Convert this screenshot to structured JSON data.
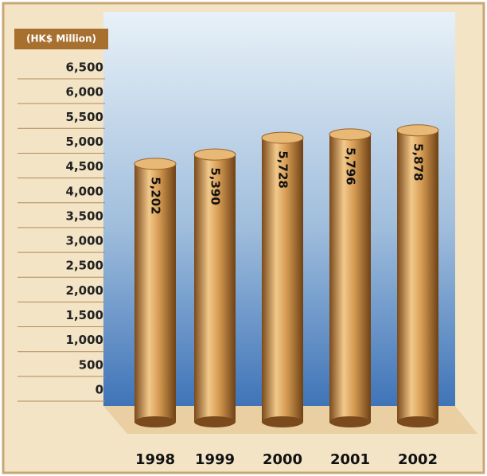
{
  "chart_data": {
    "type": "bar",
    "y_label": "(HK$ Million)",
    "categories": [
      "1998",
      "1999",
      "2000",
      "2001",
      "2002"
    ],
    "values": [
      5202,
      5390,
      5728,
      5796,
      5878
    ],
    "value_labels": [
      "5,202",
      "5,390",
      "5,728",
      "5,796",
      "5,878"
    ],
    "color": "#c8893c",
    "ylim": [
      0,
      6500
    ],
    "yticks": [
      0,
      500,
      {
        "value": 1000,
        "label": "1,000"
      },
      {
        "value": 1500,
        "label": "1,500"
      },
      {
        "value": 2000,
        "label": "2,000"
      },
      {
        "value": 2500,
        "label": "2,500"
      },
      {
        "value": 3000,
        "label": "3,000"
      },
      {
        "value": 3500,
        "label": "3,500"
      },
      {
        "value": 4000,
        "label": "4,000"
      },
      {
        "value": 4500,
        "label": "4,500"
      },
      {
        "value": 5000,
        "label": "5,000"
      },
      {
        "value": 5500,
        "label": "5,500"
      },
      {
        "value": 6000,
        "label": "6,000"
      },
      {
        "value": 6500,
        "label": "6,500"
      }
    ]
  }
}
